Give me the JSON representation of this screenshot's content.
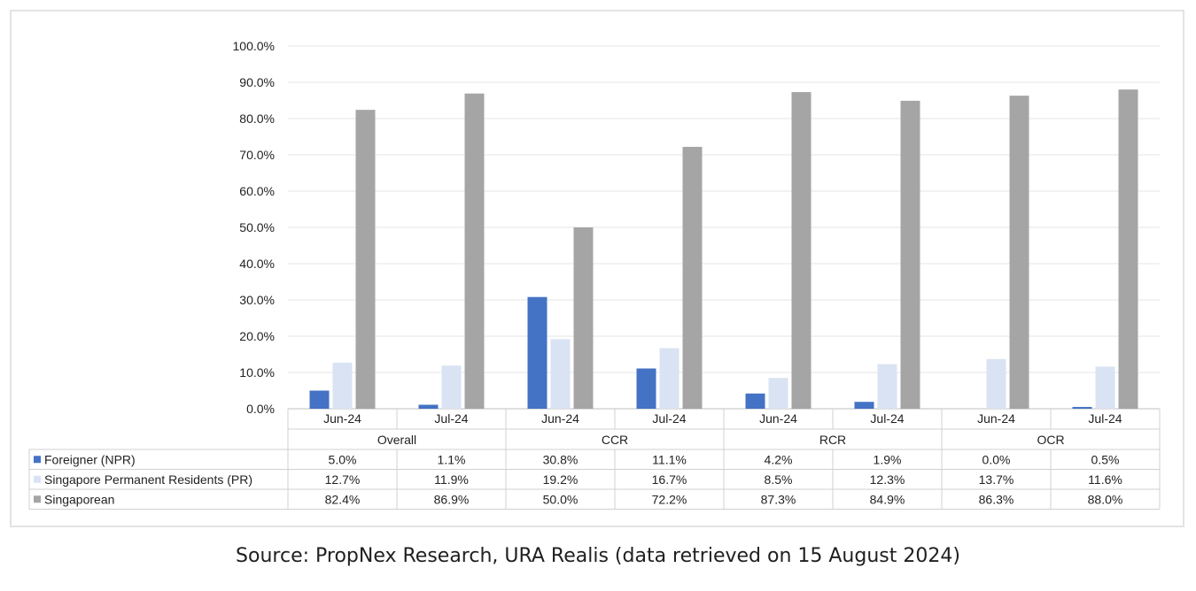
{
  "chart_data": {
    "type": "bar",
    "groups": [
      {
        "label": "Overall",
        "periods": [
          "Jun-24",
          "Jul-24"
        ]
      },
      {
        "label": "CCR",
        "periods": [
          "Jun-24",
          "Jul-24"
        ]
      },
      {
        "label": "RCR",
        "periods": [
          "Jun-24",
          "Jul-24"
        ]
      },
      {
        "label": "OCR",
        "periods": [
          "Jun-24",
          "Jul-24"
        ]
      }
    ],
    "categories": [
      "Jun-24",
      "Jul-24",
      "Jun-24",
      "Jul-24",
      "Jun-24",
      "Jul-24",
      "Jun-24",
      "Jul-24"
    ],
    "series": [
      {
        "name": "Foreigner (NPR)",
        "color": "#4472c4",
        "values": [
          5.0,
          1.1,
          30.8,
          11.1,
          4.2,
          1.9,
          0.0,
          0.5
        ],
        "labels": [
          "5.0%",
          "1.1%",
          "30.8%",
          "11.1%",
          "4.2%",
          "1.9%",
          "0.0%",
          "0.5%"
        ]
      },
      {
        "name": "Singapore Permanent Residents (PR)",
        "color": "#dae3f3",
        "values": [
          12.7,
          11.9,
          19.2,
          16.7,
          8.5,
          12.3,
          13.7,
          11.6
        ],
        "labels": [
          "12.7%",
          "11.9%",
          "19.2%",
          "16.7%",
          "8.5%",
          "12.3%",
          "13.7%",
          "11.6%"
        ]
      },
      {
        "name": "Singaporean",
        "color": "#a5a5a5",
        "values": [
          82.4,
          86.9,
          50.0,
          72.2,
          87.3,
          84.9,
          86.3,
          88.0
        ],
        "labels": [
          "82.4%",
          "86.9%",
          "50.0%",
          "72.2%",
          "87.3%",
          "84.9%",
          "86.3%",
          "88.0%"
        ]
      }
    ],
    "ylim": [
      0,
      100
    ],
    "yticks": [
      "0.0%",
      "10.0%",
      "20.0%",
      "30.0%",
      "40.0%",
      "50.0%",
      "60.0%",
      "70.0%",
      "80.0%",
      "90.0%",
      "100.0%"
    ],
    "grid": true,
    "legend": "data-table"
  },
  "source_text": "Source: PropNex Research, URA Realis (data retrieved on 15 August 2024)"
}
